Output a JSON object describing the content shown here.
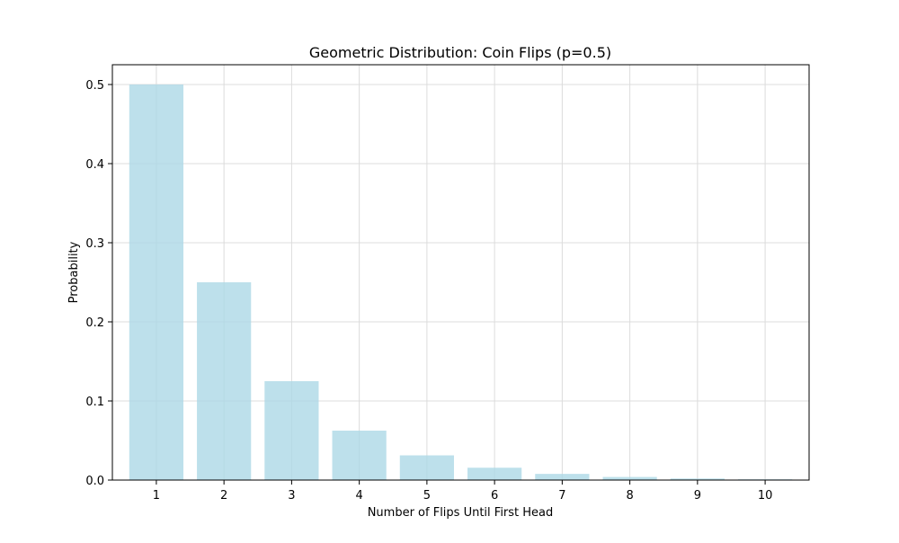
{
  "chart_data": {
    "type": "bar",
    "title": "Geometric Distribution: Coin Flips (p=0.5)",
    "xlabel": "Number of Flips Until First Head",
    "ylabel": "Probability",
    "categories": [
      "1",
      "2",
      "3",
      "4",
      "5",
      "6",
      "7",
      "8",
      "9",
      "10"
    ],
    "values": [
      0.5,
      0.25,
      0.125,
      0.0625,
      0.03125,
      0.015625,
      0.0078125,
      0.00390625,
      0.001953125,
      0.0009765625
    ],
    "ylim": [
      0,
      0.525
    ],
    "yticks": [
      0.0,
      0.1,
      0.2,
      0.3,
      0.4,
      0.5
    ],
    "ytick_labels": [
      "0.0",
      "0.1",
      "0.2",
      "0.3",
      "0.4",
      "0.5"
    ],
    "grid": true,
    "bar_color": "#add8e6",
    "bar_alpha": 0.8,
    "grid_color": "#dcdcdc"
  }
}
